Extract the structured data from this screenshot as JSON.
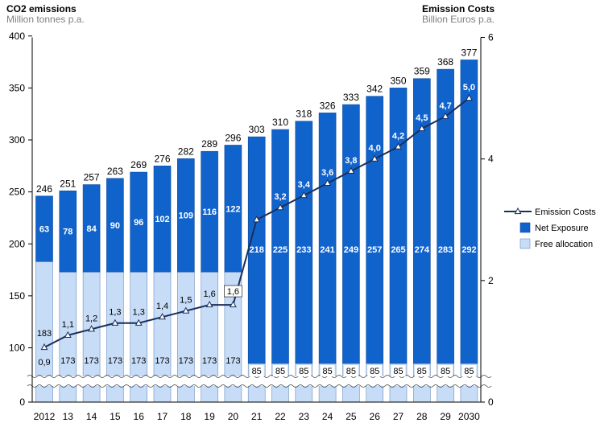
{
  "chart_data": {
    "type": "bar",
    "stacked": true,
    "title_left": "CO2 emissions",
    "subtitle_left": "Million tonnes p.a.",
    "title_right": "Emission Costs",
    "subtitle_right": "Billion Euros p.a.",
    "categories": [
      "2012",
      "13",
      "14",
      "15",
      "16",
      "17",
      "18",
      "19",
      "20",
      "21",
      "22",
      "23",
      "24",
      "25",
      "26",
      "27",
      "28",
      "29",
      "2030"
    ],
    "left_axis": {
      "ylim": [
        0,
        400
      ],
      "ticks": [
        "0",
        "100",
        "150",
        "200",
        "250",
        "300",
        "350",
        "400"
      ],
      "break": [
        0,
        80
      ]
    },
    "right_axis": {
      "ylim": [
        0,
        6
      ],
      "ticks": [
        "0",
        "2",
        "4",
        "6"
      ]
    },
    "totals": [
      246,
      251,
      257,
      263,
      269,
      276,
      282,
      289,
      296,
      303,
      310,
      318,
      326,
      333,
      342,
      350,
      359,
      368,
      377
    ],
    "totals_labels": [
      "246",
      "251",
      "257",
      "263",
      "269",
      "276",
      "282",
      "289",
      "296",
      "303",
      "310",
      "318",
      "326",
      "333",
      "342",
      "350",
      "359",
      "368",
      "377"
    ],
    "series": [
      {
        "name": "Free allocation",
        "color": "#c6dcf7",
        "values": [
          183,
          173,
          173,
          173,
          173,
          173,
          173,
          173,
          173,
          85,
          85,
          85,
          85,
          85,
          85,
          85,
          85,
          85,
          85
        ],
        "labels": [
          "183",
          "173",
          "173",
          "173",
          "173",
          "173",
          "173",
          "173",
          "173",
          "85",
          "85",
          "85",
          "85",
          "85",
          "85",
          "85",
          "85",
          "85",
          "85"
        ]
      },
      {
        "name": "Net Exposure",
        "color": "#1163cc",
        "values": [
          63,
          78,
          84,
          90,
          96,
          102,
          109,
          116,
          122,
          218,
          225,
          233,
          241,
          249,
          257,
          265,
          274,
          283,
          292
        ],
        "labels": [
          "63",
          "78",
          "84",
          "90",
          "96",
          "102",
          "109",
          "116",
          "122",
          "218",
          "225",
          "233",
          "241",
          "249",
          "257",
          "265",
          "274",
          "283",
          "292"
        ]
      },
      {
        "name": "Emission Costs",
        "axis": "right",
        "type": "line",
        "color": "#1a2f5a",
        "values": [
          0.9,
          1.1,
          1.2,
          1.3,
          1.3,
          1.4,
          1.5,
          1.6,
          1.6,
          3.0,
          3.2,
          3.4,
          3.6,
          3.8,
          4.0,
          4.2,
          4.5,
          4.7,
          5.0
        ],
        "labels": [
          "0,9",
          "1,1",
          "1,2",
          "1,3",
          "1,3",
          "1,4",
          "1,5",
          "1,6",
          "1,6",
          "",
          "3,2",
          "3,4",
          "3,6",
          "3,8",
          "4,0",
          "4,2",
          "4,5",
          "4,7",
          "5,0"
        ]
      }
    ],
    "legend": {
      "placement": "right",
      "entries": [
        "Emission Costs",
        "Net Exposure",
        "Free allocation"
      ]
    },
    "grid": false
  }
}
